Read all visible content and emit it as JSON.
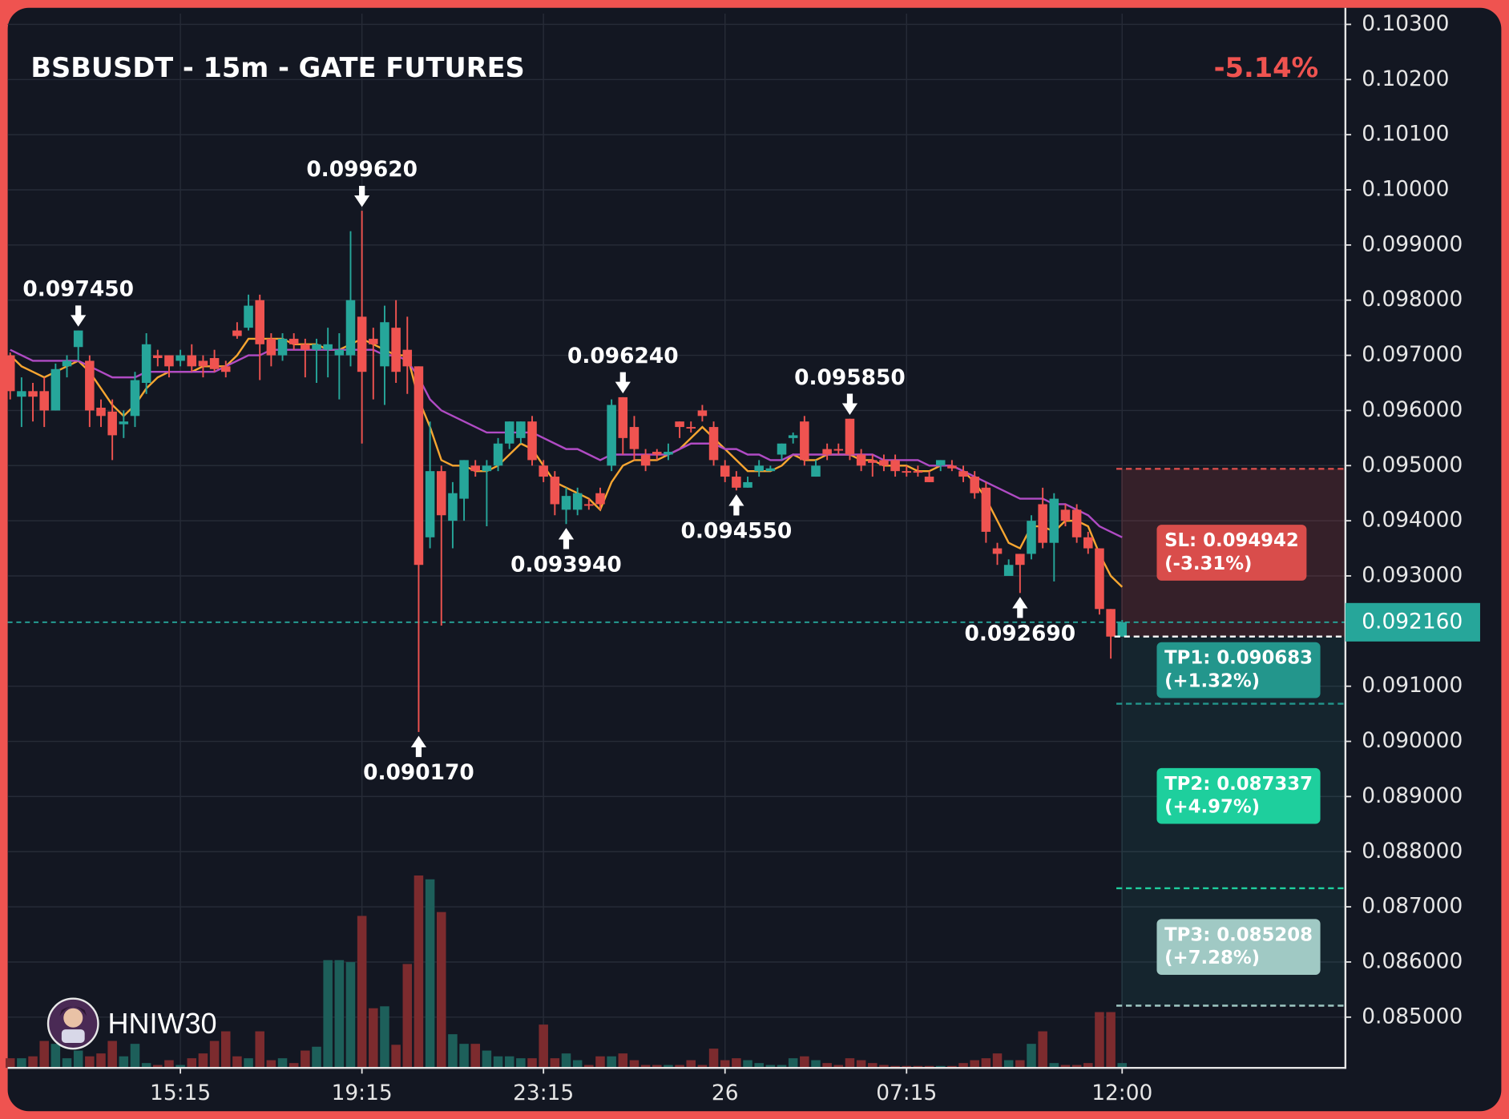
{
  "chart_data": {
    "type": "candlestick",
    "title": "BSBUSDT - 15m - GATE FUTURES",
    "change": "-5.14%",
    "watermark": "HNIW30",
    "up_color": "#26a69a",
    "down_color": "#ef5350",
    "volume_up_color": "#1d5f5a",
    "volume_down_color": "#7c2b2e",
    "grid": true,
    "categories": [
      null,
      null,
      null,
      null,
      null,
      null,
      null,
      null,
      null,
      null,
      null,
      null,
      null,
      null,
      null,
      "15:15",
      null,
      null,
      null,
      null,
      null,
      null,
      null,
      null,
      null,
      null,
      null,
      null,
      null,
      null,
      null,
      "19:15",
      null,
      null,
      null,
      null,
      null,
      null,
      null,
      null,
      null,
      null,
      null,
      null,
      null,
      null,
      null,
      "23:15",
      null,
      null,
      null,
      null,
      null,
      null,
      null,
      null,
      null,
      null,
      null,
      null,
      null,
      null,
      null,
      "26",
      null,
      null,
      null,
      null,
      null,
      null,
      null,
      null,
      null,
      null,
      null,
      null,
      null,
      null,
      null,
      "07:15",
      null,
      null,
      null,
      null,
      null,
      null,
      null,
      null,
      null,
      null,
      null,
      null,
      null,
      null,
      null,
      null,
      null,
      null,
      "12:00"
    ],
    "open": [
      0.097,
      0.09625,
      0.09635,
      0.09635,
      0.096,
      0.0968,
      0.09715,
      0.0969,
      0.09605,
      0.09598,
      0.09575,
      0.0959,
      0.0965,
      0.097,
      0.097,
      0.0969,
      0.097,
      0.0969,
      0.09695,
      0.0968,
      0.09745,
      0.0975,
      0.098,
      0.0973,
      0.097,
      0.0973,
      0.0972,
      0.0971,
      0.0971,
      0.097,
      0.097,
      0.0977,
      0.0973,
      0.0968,
      0.0975,
      0.0971,
      0.0968,
      0.0937,
      0.0949,
      0.094,
      0.0944,
      0.095,
      0.0949,
      0.095,
      0.0954,
      0.0955,
      0.0958,
      0.095,
      0.0948,
      0.0942,
      0.0942,
      0.0943,
      0.0945,
      0.095,
      0.09624,
      0.0957,
      0.0952,
      0.09525,
      0.0952,
      0.0958,
      0.0957,
      0.096,
      0.0957,
      0.095,
      0.0948,
      0.0946,
      0.0949,
      0.0949,
      0.0952,
      0.0955,
      0.0958,
      0.0948,
      0.0953,
      0.0953,
      0.09585,
      0.0952,
      0.0951,
      0.0951,
      0.0951,
      0.0949,
      0.0949,
      0.0948,
      0.095,
      0.095,
      0.0949,
      0.0948,
      0.0946,
      0.0935,
      0.093,
      0.0934,
      0.0934,
      0.0943,
      0.0936,
      0.0942,
      0.0942,
      0.0937,
      0.0935,
      0.0924,
      0.0919
    ],
    "high": [
      0.09705,
      0.0966,
      0.0965,
      0.0966,
      0.09685,
      0.097,
      0.09745,
      0.097,
      0.0962,
      0.0962,
      0.096,
      0.0967,
      0.0974,
      0.0971,
      0.097,
      0.0971,
      0.0972,
      0.097,
      0.0971,
      0.0969,
      0.0976,
      0.0981,
      0.0981,
      0.0974,
      0.0974,
      0.0974,
      0.0973,
      0.0973,
      0.0975,
      0.0974,
      0.09925,
      0.09962,
      0.0975,
      0.0979,
      0.098,
      0.0977,
      0.0968,
      0.0958,
      0.095,
      0.0947,
      0.0951,
      0.0951,
      0.0951,
      0.0955,
      0.0958,
      0.0958,
      0.0959,
      0.0951,
      0.0949,
      0.0946,
      0.0946,
      0.0944,
      0.0946,
      0.0962,
      0.09624,
      0.0959,
      0.0953,
      0.0953,
      0.0954,
      0.0958,
      0.0958,
      0.0961,
      0.0958,
      0.0951,
      0.0949,
      0.0948,
      0.0951,
      0.095,
      0.0954,
      0.0956,
      0.0959,
      0.0951,
      0.0954,
      0.0954,
      0.09585,
      0.0953,
      0.0952,
      0.0952,
      0.0952,
      0.095,
      0.095,
      0.0949,
      0.0951,
      0.0951,
      0.095,
      0.0949,
      0.0947,
      0.0936,
      0.0933,
      0.0934,
      0.0941,
      0.0946,
      0.0945,
      0.0943,
      0.0943,
      0.0938,
      0.0935,
      0.0924,
      0.0922
    ],
    "low": [
      0.0962,
      0.0957,
      0.0958,
      0.0957,
      0.096,
      0.0966,
      0.0969,
      0.0957,
      0.0957,
      0.0951,
      0.0955,
      0.0957,
      0.0963,
      0.0968,
      0.0966,
      0.0968,
      0.0967,
      0.0966,
      0.0967,
      0.0966,
      0.0973,
      0.09745,
      0.09655,
      0.0968,
      0.0969,
      0.0971,
      0.0966,
      0.0965,
      0.0966,
      0.0962,
      0.0968,
      0.0954,
      0.0962,
      0.0961,
      0.0965,
      0.0963,
      0.09017,
      0.0935,
      0.0921,
      0.0935,
      0.094,
      0.0948,
      0.0939,
      0.0949,
      0.0953,
      0.0954,
      0.095,
      0.0947,
      0.0941,
      0.09394,
      0.0941,
      0.0942,
      0.0942,
      0.0949,
      0.0952,
      0.0951,
      0.0949,
      0.0951,
      0.0951,
      0.0955,
      0.0956,
      0.0958,
      0.095,
      0.0947,
      0.09455,
      0.0946,
      0.0948,
      0.0949,
      0.0951,
      0.0954,
      0.095,
      0.0948,
      0.0951,
      0.0952,
      0.0951,
      0.0949,
      0.0948,
      0.0949,
      0.0948,
      0.0948,
      0.0948,
      0.0947,
      0.0949,
      0.0949,
      0.0947,
      0.0944,
      0.0936,
      0.0932,
      0.093,
      0.09269,
      0.0933,
      0.0935,
      0.0929,
      0.0939,
      0.0936,
      0.0934,
      0.0923,
      0.0915,
      0.0919
    ],
    "close": [
      0.09635,
      0.09635,
      0.09625,
      0.096,
      0.09675,
      0.0969,
      0.09745,
      0.096,
      0.0959,
      0.09555,
      0.0958,
      0.09655,
      0.0972,
      0.09695,
      0.0968,
      0.097,
      0.0968,
      0.0968,
      0.09675,
      0.0967,
      0.09735,
      0.0979,
      0.0972,
      0.097,
      0.0973,
      0.0972,
      0.0971,
      0.0972,
      0.0972,
      0.0971,
      0.098,
      0.0967,
      0.0972,
      0.0976,
      0.0967,
      0.0968,
      0.0932,
      0.0949,
      0.0941,
      0.0945,
      0.0951,
      0.0949,
      0.095,
      0.0954,
      0.0958,
      0.0958,
      0.0951,
      0.0948,
      0.0943,
      0.09445,
      0.0945,
      0.09428,
      0.0943,
      0.0961,
      0.0955,
      0.0953,
      0.095,
      0.0952,
      0.09525,
      0.0957,
      0.09568,
      0.0959,
      0.0951,
      0.0948,
      0.0946,
      0.0947,
      0.095,
      0.09495,
      0.0954,
      0.09555,
      0.0951,
      0.095,
      0.0952,
      0.09528,
      0.0952,
      0.095,
      0.09505,
      0.095,
      0.0949,
      0.09488,
      0.09488,
      0.0947,
      0.0951,
      0.09495,
      0.0948,
      0.0945,
      0.0938,
      0.0934,
      0.0932,
      0.0932,
      0.094,
      0.0936,
      0.0944,
      0.094,
      0.0937,
      0.0935,
      0.0924,
      0.0919,
      0.09216
    ],
    "volume": [
      10,
      10,
      12,
      28,
      25,
      10,
      18,
      12,
      15,
      28,
      12,
      25,
      5,
      3,
      8,
      3,
      10,
      15,
      28,
      38,
      12,
      10,
      38,
      8,
      10,
      5,
      18,
      22,
      112,
      112,
      110,
      158,
      62,
      64,
      24,
      108,
      200,
      196,
      162,
      35,
      25,
      25,
      18,
      12,
      12,
      10,
      10,
      45,
      10,
      15,
      8,
      3,
      12,
      12,
      15,
      8,
      3,
      3,
      3,
      3,
      8,
      3,
      20,
      8,
      10,
      8,
      5,
      3,
      3,
      10,
      12,
      8,
      5,
      3,
      10,
      8,
      5,
      3,
      2,
      2,
      2,
      2,
      2,
      2,
      5,
      8,
      10,
      15,
      8,
      8,
      25,
      38,
      5,
      3,
      3,
      5,
      58,
      58,
      5
    ],
    "lines": [
      {
        "color": "#f7a631",
        "values": [
          0.097,
          0.0968,
          0.0967,
          0.0966,
          0.0967,
          0.0968,
          0.0969,
          0.0967,
          0.0964,
          0.0961,
          0.0959,
          0.0961,
          0.0964,
          0.0966,
          0.0967,
          0.0967,
          0.0967,
          0.0968,
          0.0968,
          0.0968,
          0.097,
          0.0973,
          0.0973,
          0.0973,
          0.0973,
          0.0972,
          0.0972,
          0.0972,
          0.0971,
          0.0971,
          0.0972,
          0.0973,
          0.0972,
          0.0971,
          0.097,
          0.097,
          0.0962,
          0.0957,
          0.0951,
          0.095,
          0.095,
          0.0949,
          0.0949,
          0.095,
          0.0952,
          0.0954,
          0.0953,
          0.095,
          0.0947,
          0.0946,
          0.0945,
          0.0944,
          0.0942,
          0.0947,
          0.095,
          0.0951,
          0.0951,
          0.0951,
          0.0952,
          0.0953,
          0.0955,
          0.0957,
          0.0955,
          0.0953,
          0.0951,
          0.0949,
          0.0949,
          0.0949,
          0.095,
          0.0952,
          0.0951,
          0.0951,
          0.0952,
          0.0952,
          0.0952,
          0.0951,
          0.0951,
          0.095,
          0.095,
          0.095,
          0.0949,
          0.0949,
          0.095,
          0.095,
          0.0949,
          0.0947,
          0.0944,
          0.094,
          0.0936,
          0.0935,
          0.0939,
          0.0939,
          0.0938,
          0.094,
          0.094,
          0.0939,
          0.0934,
          0.093,
          0.0928
        ]
      },
      {
        "color": "#b04bc4",
        "values": [
          0.0971,
          0.097,
          0.0969,
          0.0969,
          0.0969,
          0.0969,
          0.0969,
          0.0968,
          0.0967,
          0.0966,
          0.0966,
          0.0966,
          0.0967,
          0.0967,
          0.0967,
          0.0967,
          0.0967,
          0.0967,
          0.0967,
          0.0968,
          0.0969,
          0.097,
          0.097,
          0.0971,
          0.0971,
          0.0971,
          0.0971,
          0.0971,
          0.0971,
          0.0971,
          0.0971,
          0.0971,
          0.0971,
          0.097,
          0.097,
          0.0969,
          0.0966,
          0.0962,
          0.096,
          0.0959,
          0.0958,
          0.0957,
          0.0956,
          0.0956,
          0.0956,
          0.0956,
          0.0956,
          0.0955,
          0.0954,
          0.0953,
          0.0953,
          0.0952,
          0.0951,
          0.0952,
          0.0952,
          0.0952,
          0.0952,
          0.0952,
          0.0952,
          0.0953,
          0.0954,
          0.0954,
          0.0954,
          0.0953,
          0.0953,
          0.0952,
          0.0952,
          0.0951,
          0.0951,
          0.0952,
          0.0952,
          0.0952,
          0.0952,
          0.0952,
          0.0952,
          0.0952,
          0.0952,
          0.0951,
          0.0951,
          0.0951,
          0.0951,
          0.095,
          0.095,
          0.095,
          0.0949,
          0.0948,
          0.0947,
          0.0946,
          0.0945,
          0.0944,
          0.0944,
          0.0944,
          0.0943,
          0.0943,
          0.0942,
          0.0941,
          0.0939,
          0.0938,
          0.0937
        ]
      }
    ],
    "ylim": [
      0.08408,
      0.1033
    ],
    "yticks": [
      {
        "value": 0.103,
        "label": "0.10300"
      },
      {
        "value": 0.102,
        "label": "0.10200"
      },
      {
        "value": 0.101,
        "label": "0.10100"
      },
      {
        "value": 0.1,
        "label": "0.10000"
      },
      {
        "value": 0.099,
        "label": "0.099000"
      },
      {
        "value": 0.098,
        "label": "0.098000"
      },
      {
        "value": 0.097,
        "label": "0.097000"
      },
      {
        "value": 0.096,
        "label": "0.096000"
      },
      {
        "value": 0.095,
        "label": "0.095000"
      },
      {
        "value": 0.094,
        "label": "0.094000"
      },
      {
        "value": 0.093,
        "label": "0.093000"
      },
      {
        "value": 0.091,
        "label": "0.091000"
      },
      {
        "value": 0.09,
        "label": "0.090000"
      },
      {
        "value": 0.089,
        "label": "0.089000"
      },
      {
        "value": 0.088,
        "label": "0.088000"
      },
      {
        "value": 0.087,
        "label": "0.087000"
      },
      {
        "value": 0.086,
        "label": "0.086000"
      },
      {
        "value": 0.085,
        "label": "0.085000"
      }
    ],
    "current_price": {
      "value": 0.09216,
      "label": "0.092160",
      "color": "#26a69a"
    },
    "high_labels": [
      {
        "value": 0.09745,
        "label": "0.097450"
      },
      {
        "value": 0.09962,
        "label": "0.099620"
      },
      {
        "value": 0.09624,
        "label": "0.096240"
      },
      {
        "value": 0.09585,
        "label": "0.095850"
      }
    ],
    "low_labels": [
      {
        "value": 0.09017,
        "label": "0.090170"
      },
      {
        "value": 0.09394,
        "label": "0.093940"
      },
      {
        "value": 0.09455,
        "label": "0.094550"
      },
      {
        "value": 0.09269,
        "label": "0.092690"
      }
    ],
    "trade": {
      "entry": 0.0919,
      "levels": [
        {
          "label": "SL: 0.094942",
          "value": 0.094942,
          "change": "(-3.31%)",
          "color": "#d94d4b"
        },
        {
          "label": "TP1: 0.090683",
          "value": 0.090683,
          "change": "(+1.32%)",
          "color": "#23968c"
        },
        {
          "label": "TP2: 0.087337",
          "value": 0.087337,
          "change": "(+4.97%)",
          "color": "#1ecf9d"
        },
        {
          "label": "TP3: 0.085208",
          "value": 0.085208,
          "change": "(+7.28%)",
          "color": "#a0c9c4"
        }
      ]
    }
  }
}
